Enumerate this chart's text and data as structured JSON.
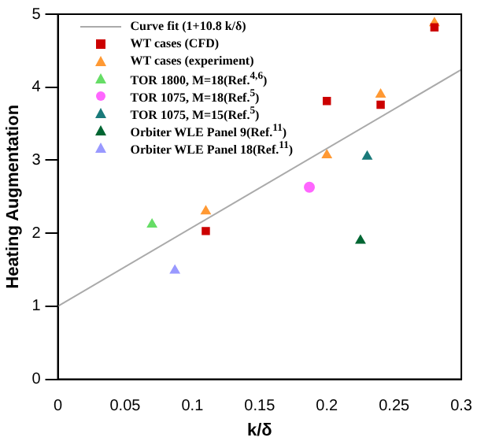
{
  "chart_data": {
    "type": "scatter",
    "xlabel": "k/δ",
    "ylabel": "Heating Augmentation",
    "xlim": [
      0,
      0.3
    ],
    "ylim": [
      0,
      5
    ],
    "xticks": [
      0,
      0.05,
      0.1,
      0.15,
      0.2,
      0.25,
      0.3
    ],
    "yticks": [
      0,
      1,
      2,
      3,
      4,
      5
    ],
    "legend": "top left",
    "grid": false,
    "series": [
      {
        "name": "Curve fit (1+10.8 k/δ)",
        "type": "line",
        "color": "#aaaaaa",
        "marker": "none",
        "x": [
          0,
          0.3
        ],
        "values": [
          1,
          4.24
        ]
      },
      {
        "name": "WT cases (CFD)",
        "color": "#cc0000",
        "marker": "square",
        "x": [
          0.11,
          0.2,
          0.24,
          0.28
        ],
        "values": [
          2.03,
          3.81,
          3.76,
          4.82
        ]
      },
      {
        "name": "WT cases (experiment)",
        "color": "#ff9933",
        "marker": "triangle",
        "x": [
          0.11,
          0.2,
          0.24,
          0.28
        ],
        "values": [
          2.3,
          3.07,
          3.9,
          4.88
        ]
      },
      {
        "name": "TOR 1800, M=18(Ref.$^{4,6}$)",
        "color": "#66dd66",
        "marker": "triangle",
        "x": [
          0.07
        ],
        "values": [
          2.12
        ]
      },
      {
        "name": "TOR 1075, M=18(Ref.$^{5}$)",
        "color": "#ff66ff",
        "marker": "circle",
        "x": [
          0.187
        ],
        "values": [
          2.63
        ]
      },
      {
        "name": "TOR 1075, M=15(Ref.$^{5}$)",
        "color": "#1a7a7a",
        "marker": "triangle",
        "x": [
          0.23
        ],
        "values": [
          3.05
        ]
      },
      {
        "name": "Orbiter WLE Panel 9(Ref.$^{11}$)",
        "color": "#006633",
        "marker": "triangle",
        "x": [
          0.225
        ],
        "values": [
          1.9
        ]
      },
      {
        "name": "Orbiter WLE Panel 18(Ref.$^{11}$)",
        "color": "#9999ff",
        "marker": "triangle",
        "x": [
          0.087
        ],
        "values": [
          1.49
        ]
      }
    ]
  }
}
